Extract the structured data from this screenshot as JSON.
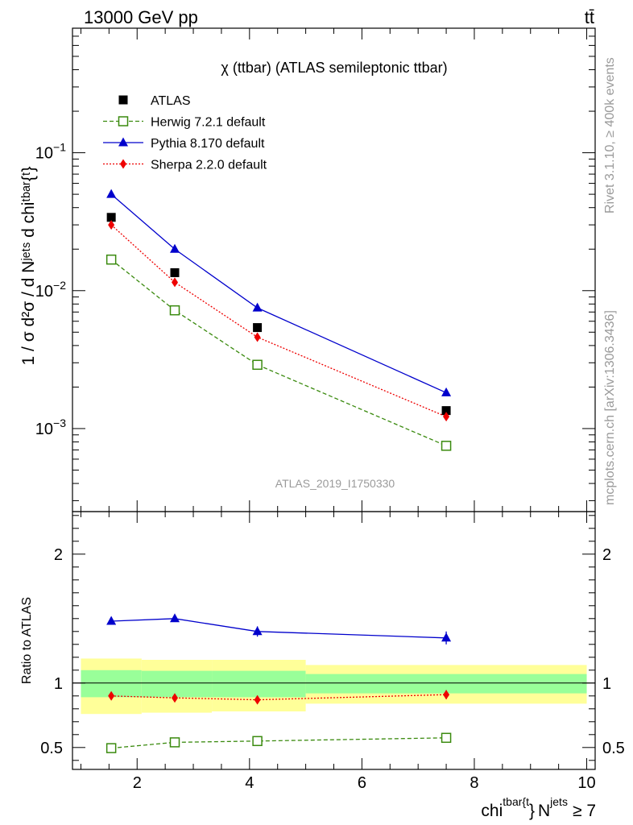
{
  "header": {
    "left": "13000 GeV pp",
    "right": "tt̄"
  },
  "side_labels": {
    "rivet": "Rivet 3.1.10, ≥ 400k events",
    "mcplots": "mcplots.cern.ch [arXiv:1306.3436]"
  },
  "watermark": "ATLAS_2019_I1750330",
  "colors": {
    "atlas": "#000000",
    "herwig": "#3a8a0e",
    "pythia": "#0000cc",
    "sherpa": "#ee0000",
    "band_inner": "#99ff99",
    "band_outer": "#ffff99"
  },
  "chart_data": [
    {
      "type": "scatter",
      "title": "χ (ttbar) (ATLAS semileptonic ttbar)",
      "ylabel": "1 / σ d²σ / d Nʲᵉᵗˢ d chiᵗᵇᵃʳ{ᵗ}",
      "yscale": "log",
      "ylim": [
        0.00025,
        0.8
      ],
      "xlim": [
        0.85,
        10.15
      ],
      "y_ticks": [
        {
          "value": 0.001,
          "base": "10",
          "exp": "−3"
        },
        {
          "value": 0.01,
          "base": "10",
          "exp": "−2"
        },
        {
          "value": 0.1,
          "base": "10",
          "exp": "−1"
        }
      ],
      "legend_position": "top-left",
      "series": [
        {
          "name": "ATLAS",
          "style": "square-filled",
          "color": "#000000",
          "x": [
            1.54,
            2.67,
            4.14,
            7.5
          ],
          "y": [
            0.034,
            0.0135,
            0.0054,
            0.00135
          ]
        },
        {
          "name": "Herwig 7.2.1 default",
          "style": "square-open-dashed",
          "color": "#3a8a0e",
          "x": [
            1.54,
            2.67,
            4.14,
            7.5
          ],
          "y": [
            0.0168,
            0.0072,
            0.0029,
            0.00075
          ]
        },
        {
          "name": "Pythia 8.170 default",
          "style": "triangle-solid",
          "color": "#0000cc",
          "x": [
            1.54,
            2.67,
            4.14,
            7.5
          ],
          "y": [
            0.05,
            0.02,
            0.0075,
            0.00182
          ]
        },
        {
          "name": "Sherpa 2.2.0 default",
          "style": "diamond-dotted",
          "color": "#ee0000",
          "x": [
            1.54,
            2.67,
            4.14,
            7.5
          ],
          "y": [
            0.03,
            0.0115,
            0.0046,
            0.00122
          ]
        }
      ]
    },
    {
      "type": "scatter",
      "ylabel": "Ratio to ATLAS",
      "xlabel_parts": {
        "main": "chi",
        "sup1": "tbar{t",
        "brace": "}",
        "n": "N",
        "sup2": "jets",
        "tail": "≥ 7"
      },
      "xlim": [
        0.85,
        10.15
      ],
      "ylim": [
        0.33,
        2.33
      ],
      "x_ticks": [
        2,
        4,
        6,
        8,
        10
      ],
      "y_ticks": [
        0.5,
        1,
        2
      ],
      "bands": [
        {
          "x0": 1.0,
          "x1": 2.08,
          "inner": [
            0.89,
            1.1
          ],
          "outer": [
            0.76,
            1.19
          ]
        },
        {
          "x0": 2.08,
          "x1": 3.33,
          "inner": [
            0.89,
            1.095
          ],
          "outer": [
            0.77,
            1.18
          ]
        },
        {
          "x0": 3.33,
          "x1": 5.0,
          "inner": [
            0.89,
            1.095
          ],
          "outer": [
            0.78,
            1.18
          ]
        },
        {
          "x0": 5.0,
          "x1": 10.0,
          "inner": [
            0.92,
            1.07
          ],
          "outer": [
            0.84,
            1.14
          ]
        }
      ],
      "series": [
        {
          "name": "Herwig 7.2.1 default",
          "color": "#3a8a0e",
          "x": [
            1.54,
            2.67,
            4.14,
            7.5
          ],
          "y": [
            0.495,
            0.54,
            0.55,
            0.575
          ],
          "err": [
            0.01,
            0.01,
            0.012,
            0.015
          ]
        },
        {
          "name": "Pythia 8.170 default",
          "color": "#0000cc",
          "x": [
            1.54,
            2.67,
            4.14,
            7.5
          ],
          "y": [
            1.48,
            1.5,
            1.4,
            1.35
          ],
          "err": [
            0.015,
            0.025,
            0.04,
            0.05
          ]
        },
        {
          "name": "Sherpa 2.2.0 default",
          "color": "#ee0000",
          "x": [
            1.54,
            2.67,
            4.14,
            7.5
          ],
          "y": [
            0.9,
            0.885,
            0.87,
            0.91
          ],
          "err": [
            0.015,
            0.02,
            0.03,
            0.035
          ]
        }
      ]
    }
  ]
}
